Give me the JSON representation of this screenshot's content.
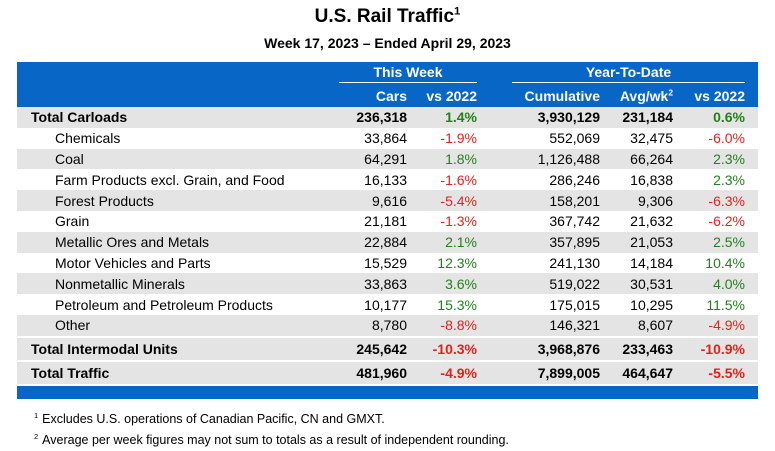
{
  "header": {
    "title": "U.S. Rail Traffic",
    "title_note": "1",
    "subtitle": "Week 17, 2023 – Ended April 29, 2023"
  },
  "table": {
    "groups": [
      "This Week",
      "Year-To-Date"
    ],
    "columns": [
      {
        "text": "Cars"
      },
      {
        "text": "vs 2022"
      },
      {
        "text": "Cumulative"
      },
      {
        "text": "Avg/wk",
        "note": "2"
      },
      {
        "text": "vs 2022"
      }
    ],
    "rows": [
      {
        "bold": true,
        "cells": [
          "Total Carloads",
          "236,318",
          "1.4%",
          "3,930,129",
          "231,184",
          "0.6%"
        ]
      },
      {
        "cells": [
          "Chemicals",
          "33,864",
          "-1.9%",
          "552,069",
          "32,475",
          "-6.0%"
        ]
      },
      {
        "cells": [
          "Coal",
          "64,291",
          "1.8%",
          "1,126,488",
          "66,264",
          "2.3%"
        ]
      },
      {
        "cells": [
          "Farm Products excl. Grain, and Food",
          "16,133",
          "-1.6%",
          "286,246",
          "16,838",
          "2.3%"
        ]
      },
      {
        "cells": [
          "Forest Products",
          "9,616",
          "-5.4%",
          "158,201",
          "9,306",
          "-6.3%"
        ]
      },
      {
        "cells": [
          "Grain",
          "21,181",
          "-1.3%",
          "367,742",
          "21,632",
          "-6.2%"
        ]
      },
      {
        "cells": [
          "Metallic Ores and Metals",
          "22,884",
          "2.1%",
          "357,895",
          "21,053",
          "2.5%"
        ]
      },
      {
        "cells": [
          "Motor Vehicles and Parts",
          "15,529",
          "12.3%",
          "241,130",
          "14,184",
          "10.4%"
        ]
      },
      {
        "cells": [
          "Nonmetallic Minerals",
          "33,863",
          "3.6%",
          "519,022",
          "30,531",
          "4.0%"
        ]
      },
      {
        "cells": [
          "Petroleum and Petroleum Products",
          "10,177",
          "15.3%",
          "175,015",
          "10,295",
          "11.5%"
        ]
      },
      {
        "cells": [
          "Other",
          "8,780",
          "-8.8%",
          "146,321",
          "8,607",
          "-4.9%"
        ]
      },
      {
        "bold": true,
        "cells": [
          "Total Intermodal Units",
          "245,642",
          "-10.3%",
          "3,968,876",
          "233,463",
          "-10.9%"
        ]
      },
      {
        "bold": true,
        "cells": [
          "Total Traffic",
          "481,960",
          "-4.9%",
          "7,899,005",
          "464,647",
          "-5.5%"
        ]
      }
    ]
  },
  "footnotes": [
    {
      "mark": "1",
      "text": "Excludes U.S. operations of Canadian Pacific, CN and GMXT."
    },
    {
      "mark": "2",
      "text": "Average per week figures may not sum to totals as a result of independent rounding."
    }
  ]
}
